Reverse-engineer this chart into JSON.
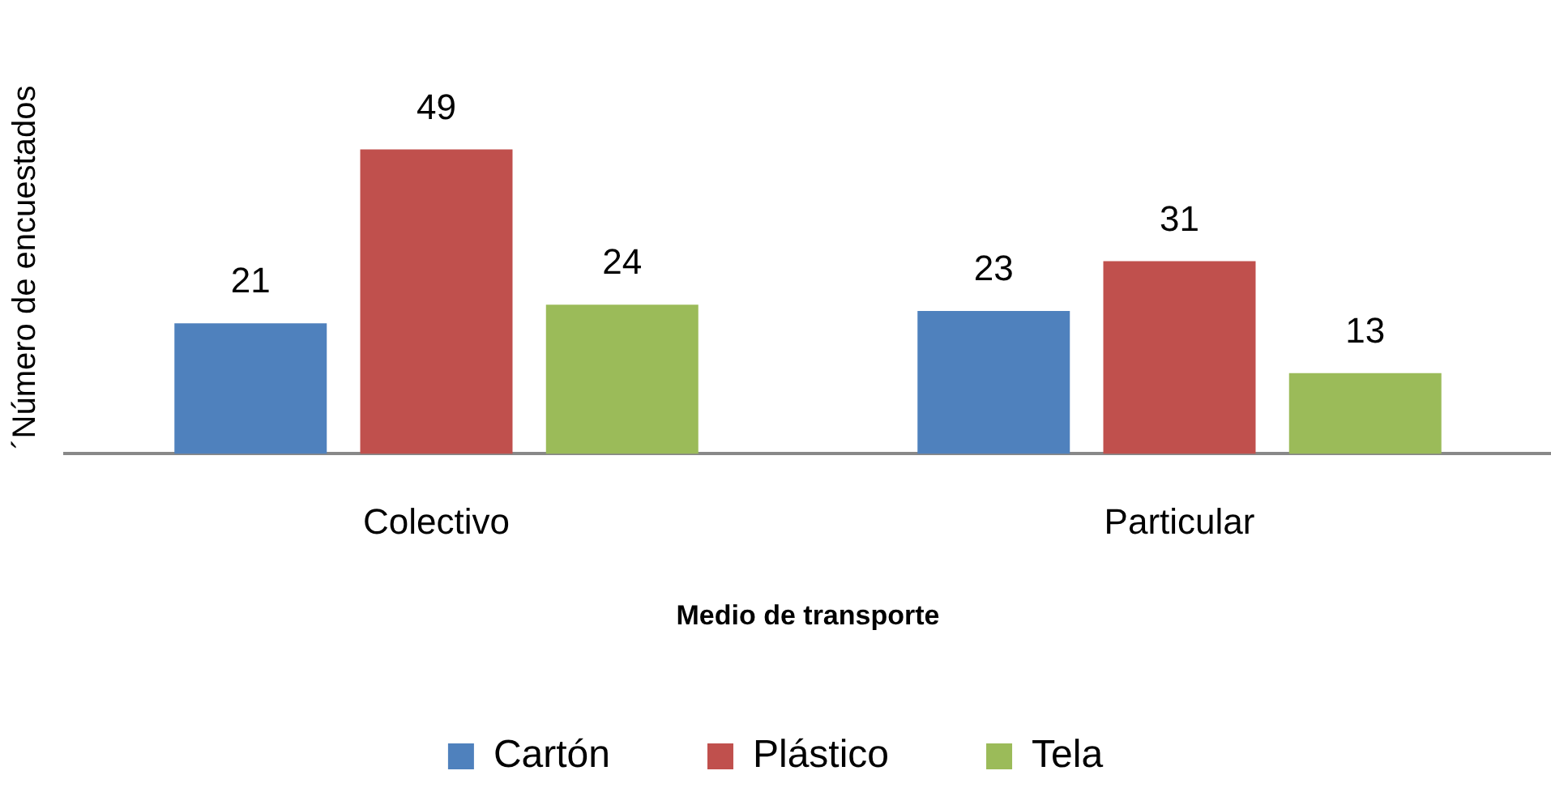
{
  "chart_data": {
    "type": "bar",
    "xlabel": "Medio de transporte",
    "ylabel": "´Número de encuestados",
    "categories": [
      "Colectivo",
      "Particular"
    ],
    "series": [
      {
        "name": "Cartón",
        "color": "#4f81bd",
        "values": [
          21,
          23
        ]
      },
      {
        "name": "Plástico",
        "color": "#c0504d",
        "values": [
          49,
          31
        ]
      },
      {
        "name": "Tela",
        "color": "#9bbb59",
        "values": [
          24,
          13
        ]
      }
    ],
    "data_labels": true,
    "legend": "bottom",
    "grid": false
  }
}
